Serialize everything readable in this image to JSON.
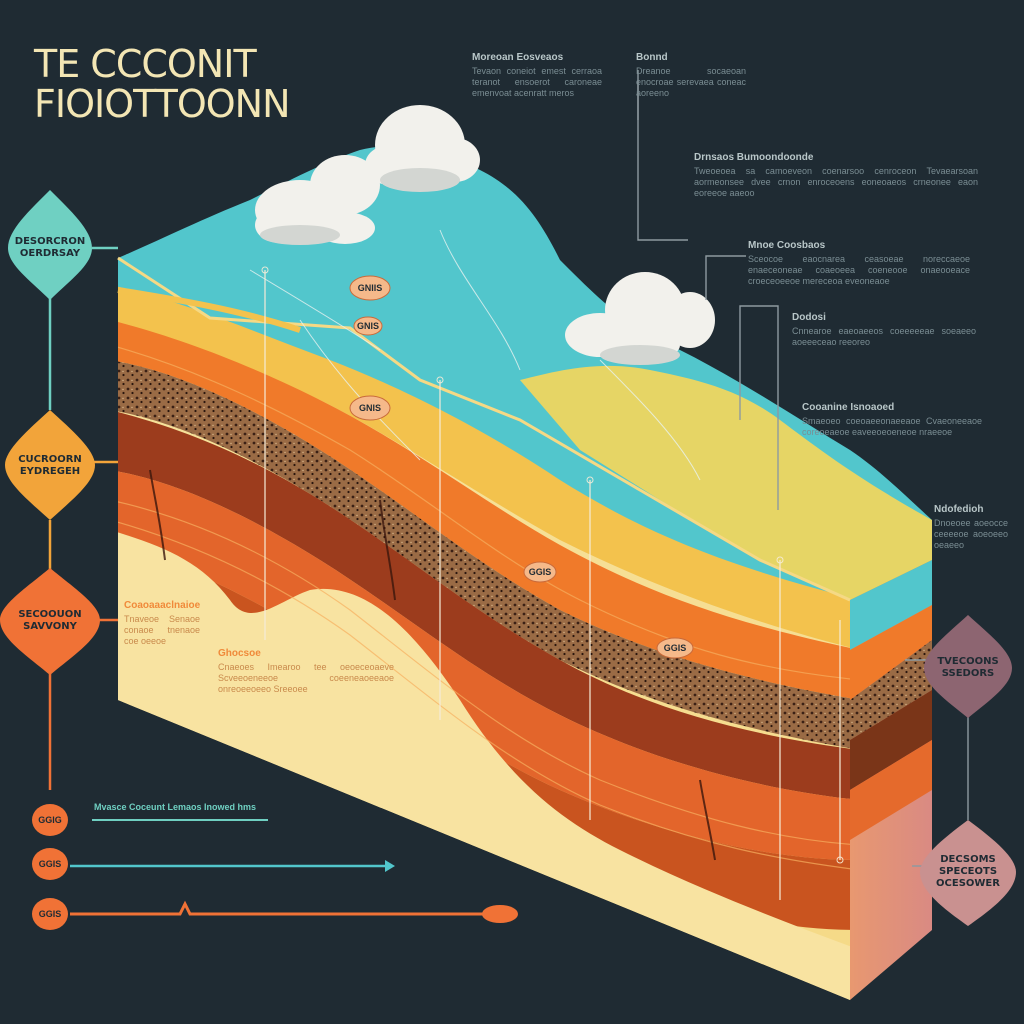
{
  "title": {
    "line1": "TE CCCONIT",
    "line2": "FIOIOTTOONN"
  },
  "colors": {
    "background": "#1f2b33",
    "surface_teal": "#52c6cc",
    "orange": "#f07a2a",
    "yellow": "#f5e08a",
    "brown": "#6e3a24",
    "node_teal": "#6fd0c2",
    "node_orange": "#f2a43a",
    "node_coral": "#f07236",
    "node_mauve": "#8d6571",
    "node_pink": "#c99190"
  },
  "left_nodes": [
    {
      "label": "DESORCRON OERDRSAY",
      "color": "teal"
    },
    {
      "label": "CUCROORN EYDREGEH",
      "color": "orange"
    },
    {
      "label": "SECOOUON SAVVONY",
      "color": "coral"
    }
  ],
  "left_pills": [
    "GGIG",
    "GGIS",
    "GGIS"
  ],
  "right_nodes": [
    {
      "label": "TVECOONS SSEDORS",
      "color": "mauve"
    },
    {
      "label": "DECSOMS SPECEOTS OCESOWER",
      "color": "pink"
    }
  ],
  "legend_caption": "Mvasce Coceunt Lemaos Inowed hms",
  "text_blocks": [
    {
      "heading": "Moreoan Eosveaos",
      "body": "Tevaon coneiot emest cerraoa teranot ensoerot caroneae emenvoat acenratt meros"
    },
    {
      "heading": "Bonnd",
      "body": "Dreanoe socaeoan enocroae serevaea coneac aoreeno"
    },
    {
      "heading": "Drnsaos Bumoondoonde",
      "body": "Tweoeoea sa camoeveon coenarsoo cenroceon Tevaearsoan aormeonsee dvee crnon enroceoens eoneoaeos crneonee eaon eoreeoe aaeoo"
    },
    {
      "heading": "Mnoe Coosbaos",
      "body": "Sceocoe eaocnarea ceasoeae noreccaeoe enaeceoneae coaeoeea coeneooe onaeooeace croeceoeeoe mereceoa eveoneaoe"
    },
    {
      "heading": "Dodosi",
      "body": "Cnnearoe eaeoaeeos coeeeeeae soeaeeo aoeeeceao reeoreo"
    },
    {
      "heading": "Cooanine Isnoaoed",
      "body": "Smaeoeo coeoaeeonaeeaoe Cvaeoneeaoe coreoeaeoe eaveeoeoeneoe nraeeoe"
    },
    {
      "heading": "Ndofedioh",
      "body": "Dnoeoee aoeocce ceeeeoe aoeoeeo oeaeeo"
    },
    {
      "heading": "Coaoaaaclnaioe",
      "body": "Tnaveoe Senaoe conaoe tnenaoe coe oeeoe"
    },
    {
      "heading": "Ghocsoe",
      "body": "Cnaeoes Imearoo tee oeoeceoaeve Scveeoeneeoe coeeneaoeeaoe onreoeeoeeo Sreeoee"
    }
  ],
  "diagram_pills": [
    "GNIIS",
    "GNIS",
    "GNIS",
    "GGIS",
    "GGIS"
  ]
}
